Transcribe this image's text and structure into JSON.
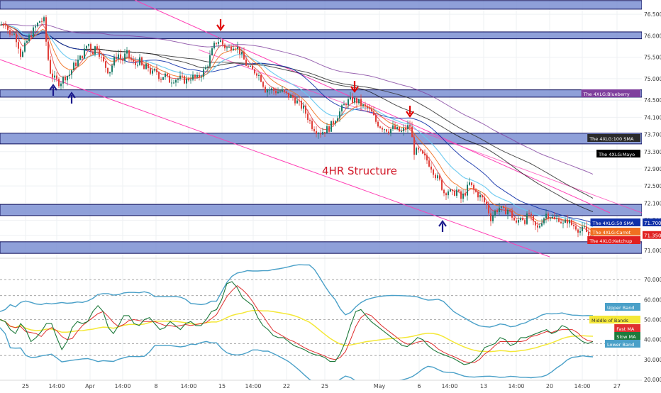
{
  "chart_data": [
    {
      "type": "candlestick",
      "pane": "price",
      "title": "",
      "annotation": "4HR Structure",
      "ylim": [
        70.85,
        76.8
      ],
      "x_ticks": [
        "25",
        "14:00",
        "Apr",
        "14:00",
        "8",
        "14:00",
        "15",
        "14:00",
        "22",
        "25",
        "May",
        "6",
        "14:00",
        "13",
        "14:00",
        "20",
        "14:00",
        "27"
      ],
      "y_ticks": [
        "76.500",
        "76.000",
        "75.500",
        "75.000",
        "74.500",
        "74.100",
        "73.700",
        "73.300",
        "72.900",
        "72.500",
        "72.100",
        "71.700",
        "71.350",
        "71.000"
      ],
      "price_path": [
        [
          0,
          76.25
        ],
        [
          8,
          76.3
        ],
        [
          14,
          76.0
        ],
        [
          18,
          76.1
        ],
        [
          24,
          75.9
        ],
        [
          30,
          75.5
        ],
        [
          36,
          75.8
        ],
        [
          42,
          76.0
        ],
        [
          50,
          76.2
        ],
        [
          56,
          76.35
        ],
        [
          62,
          76.35
        ],
        [
          66,
          75.7
        ],
        [
          70,
          75.2
        ],
        [
          76,
          75.0
        ],
        [
          84,
          74.9
        ],
        [
          92,
          75.05
        ],
        [
          98,
          75.1
        ],
        [
          104,
          75.3
        ],
        [
          112,
          75.45
        ],
        [
          118,
          75.6
        ],
        [
          124,
          75.85
        ],
        [
          130,
          75.6
        ],
        [
          136,
          75.8
        ],
        [
          142,
          75.5
        ],
        [
          148,
          75.3
        ],
        [
          154,
          75.15
        ],
        [
          160,
          75.4
        ],
        [
          166,
          75.6
        ],
        [
          172,
          75.4
        ],
        [
          178,
          75.6
        ],
        [
          184,
          75.45
        ],
        [
          190,
          75.3
        ],
        [
          196,
          75.45
        ],
        [
          202,
          75.2
        ],
        [
          208,
          75.3
        ],
        [
          214,
          75.1
        ],
        [
          220,
          75.2
        ],
        [
          226,
          75.0
        ],
        [
          232,
          75.1
        ],
        [
          238,
          74.95
        ],
        [
          246,
          75.0
        ],
        [
          254,
          75.0
        ],
        [
          262,
          74.95
        ],
        [
          270,
          75.05
        ],
        [
          278,
          75.0
        ],
        [
          286,
          75.15
        ],
        [
          292,
          75.3
        ],
        [
          298,
          75.6
        ],
        [
          304,
          75.85
        ],
        [
          310,
          75.9
        ],
        [
          316,
          75.75
        ],
        [
          322,
          75.7
        ],
        [
          330,
          75.8
        ],
        [
          336,
          75.7
        ],
        [
          342,
          75.5
        ],
        [
          348,
          75.3
        ],
        [
          354,
          75.2
        ],
        [
          362,
          75.15
        ],
        [
          368,
          75.0
        ],
        [
          374,
          74.75
        ],
        [
          382,
          74.75
        ],
        [
          390,
          74.7
        ],
        [
          398,
          74.7
        ],
        [
          406,
          74.6
        ],
        [
          414,
          74.55
        ],
        [
          422,
          74.4
        ],
        [
          428,
          74.3
        ],
        [
          434,
          74.1
        ],
        [
          440,
          73.9
        ],
        [
          446,
          73.8
        ],
        [
          452,
          73.75
        ],
        [
          458,
          73.8
        ],
        [
          464,
          73.85
        ],
        [
          470,
          74.0
        ],
        [
          476,
          74.15
        ],
        [
          482,
          74.3
        ],
        [
          488,
          74.45
        ],
        [
          494,
          74.5
        ],
        [
          500,
          74.5
        ],
        [
          506,
          74.45
        ],
        [
          512,
          74.35
        ],
        [
          518,
          74.3
        ],
        [
          524,
          74.2
        ],
        [
          530,
          74.0
        ],
        [
          536,
          73.9
        ],
        [
          542,
          73.85
        ],
        [
          548,
          73.8
        ],
        [
          554,
          73.85
        ],
        [
          560,
          73.8
        ],
        [
          566,
          73.75
        ],
        [
          572,
          73.85
        ],
        [
          578,
          73.9
        ],
        [
          584,
          73.3
        ],
        [
          590,
          73.3
        ],
        [
          596,
          73.2
        ],
        [
          602,
          73.1
        ],
        [
          608,
          72.95
        ],
        [
          614,
          72.75
        ],
        [
          620,
          72.6
        ],
        [
          626,
          72.35
        ],
        [
          632,
          72.4
        ],
        [
          638,
          72.3
        ],
        [
          644,
          72.4
        ],
        [
          650,
          72.2
        ],
        [
          656,
          72.35
        ],
        [
          662,
          72.55
        ],
        [
          668,
          72.4
        ],
        [
          674,
          72.3
        ],
        [
          680,
          72.2
        ],
        [
          686,
          72.05
        ],
        [
          692,
          71.75
        ],
        [
          698,
          71.9
        ],
        [
          704,
          72.0
        ],
        [
          710,
          71.9
        ],
        [
          716,
          71.95
        ],
        [
          722,
          71.8
        ],
        [
          728,
          71.6
        ],
        [
          734,
          71.8
        ],
        [
          740,
          71.7
        ],
        [
          746,
          71.85
        ],
        [
          752,
          71.6
        ],
        [
          758,
          71.5
        ],
        [
          764,
          71.7
        ],
        [
          770,
          71.85
        ],
        [
          776,
          71.8
        ],
        [
          782,
          71.7
        ],
        [
          788,
          71.75
        ],
        [
          794,
          71.6
        ],
        [
          800,
          71.7
        ],
        [
          806,
          71.6
        ],
        [
          812,
          71.55
        ],
        [
          818,
          71.45
        ],
        [
          824,
          71.5
        ],
        [
          830,
          71.35
        ],
        [
          836,
          71.25
        ]
      ],
      "zones": [
        {
          "low": 76.62,
          "high": 76.82
        },
        {
          "low": 75.93,
          "high": 76.09
        },
        {
          "low": 74.57,
          "high": 74.74
        },
        {
          "low": 73.48,
          "high": 73.73
        },
        {
          "low": 71.81,
          "high": 72.07
        },
        {
          "low": 70.93,
          "high": 71.2
        }
      ],
      "series": [
        {
          "name": "The 4XLG:Blueberry",
          "label_value": ""
        },
        {
          "name": "The 4XLG:100 SMA",
          "label_value": ""
        },
        {
          "name": "The 4XLG:Mayo",
          "label_value": ""
        },
        {
          "name": "The 4XLG:50 SMA",
          "label_value": "71.700"
        },
        {
          "name": "The 4XLG:Carrot",
          "label_value": ""
        },
        {
          "name": "The 4XLG:Ketchup",
          "label_value": ""
        }
      ],
      "last_price": "71.350",
      "arrows": [
        {
          "direction": "down",
          "color": "#e00000"
        },
        {
          "direction": "down",
          "color": "#e00000"
        },
        {
          "direction": "down",
          "color": "#e00000"
        },
        {
          "direction": "up",
          "color": "#1a1a8c"
        },
        {
          "direction": "up",
          "color": "#1a1a8c"
        },
        {
          "direction": "up",
          "color": "#1a1a8c"
        }
      ]
    },
    {
      "type": "line",
      "pane": "oscillator",
      "ylim": [
        20,
        80
      ],
      "y_ticks": [
        "70.000",
        "60.000",
        "50.000",
        "40.000",
        "30.000",
        "20.000"
      ],
      "levels": [
        70,
        62,
        50,
        38,
        32
      ],
      "series": [
        {
          "name": "Upper Band",
          "color": "#4aa0c8"
        },
        {
          "name": "Middle of Bands",
          "color": "#f4e838"
        },
        {
          "name": "Fast MA",
          "color": "#e03030"
        },
        {
          "name": "Slow MA",
          "color": "#1e7a3c"
        },
        {
          "name": "Lower Band",
          "color": "#4aa0c8"
        }
      ],
      "fast_values": [
        50,
        48,
        42,
        44,
        52,
        38,
        40,
        42,
        46,
        50,
        46,
        36,
        34,
        44,
        48,
        50,
        46,
        52,
        56,
        58,
        50,
        42,
        44,
        50,
        54,
        50,
        46,
        48,
        52,
        50,
        46,
        44,
        48,
        50,
        44,
        46,
        50,
        48,
        46,
        48,
        52,
        56,
        54,
        66,
        70,
        68,
        64,
        58,
        60,
        54,
        48,
        46,
        44,
        40,
        42,
        40,
        38,
        36,
        36,
        34,
        33,
        32,
        32,
        30,
        28,
        30,
        36,
        42,
        52,
        56,
        54,
        50,
        48,
        46,
        44,
        42,
        40,
        38,
        36,
        37,
        40,
        42,
        38,
        36,
        34,
        33,
        32,
        31,
        30,
        28,
        27,
        29,
        30,
        34,
        38,
        36,
        40,
        42,
        38,
        36,
        40,
        42,
        40,
        44,
        42,
        46,
        44,
        42,
        46,
        48,
        44,
        42,
        40,
        38,
        38,
        40
      ]
    }
  ],
  "colors": {
    "zone_fill": "#7b8fd2",
    "zone_stroke": "#0d0d5a",
    "up_candle": "#1e7d6a",
    "down_candle": "#e0403a",
    "channel": "#ff3fb5",
    "blueberry": "#7f3f9d",
    "sma100": "#333333",
    "mayo": "#111111",
    "sma50": "#1030a8",
    "carrot": "#f07020",
    "ketchup": "#e02020",
    "light_blue": "#66c8ef"
  }
}
